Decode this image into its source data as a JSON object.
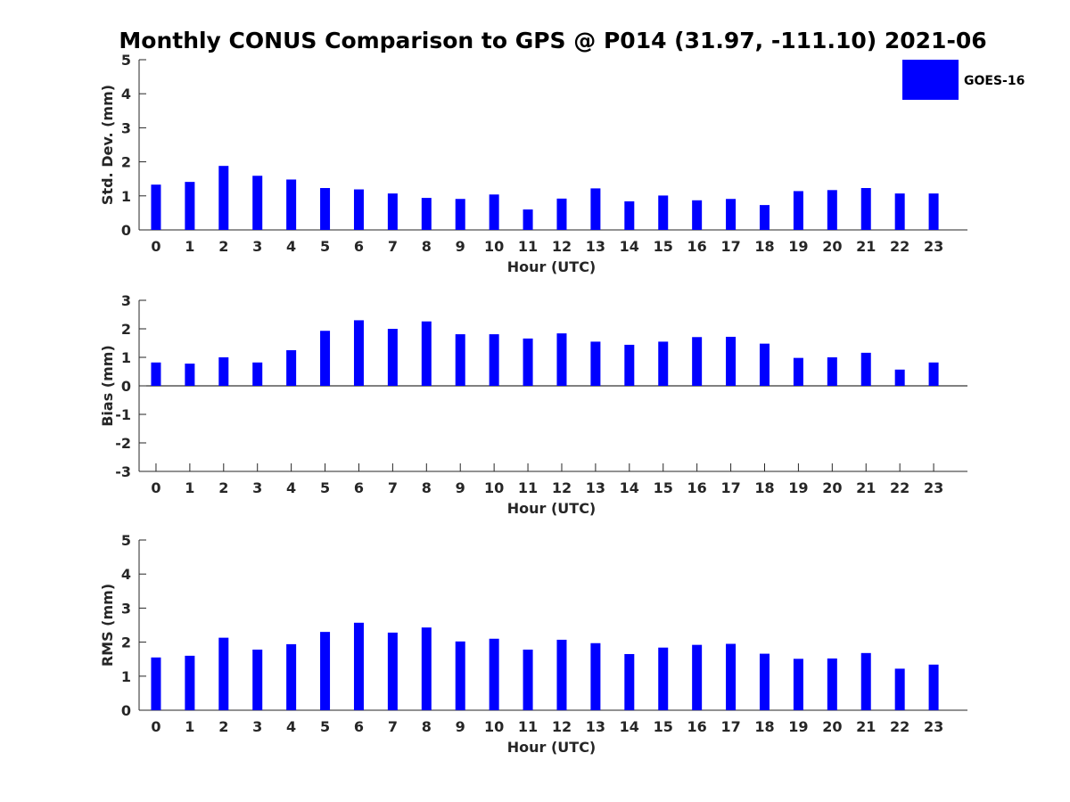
{
  "chart_data": {
    "title": "Monthly CONUS Comparison to GPS @ P014 (31.97, -111.10) 2021-06",
    "legend": {
      "label": "GOES-16",
      "color": "#0000ff",
      "position": "top-right"
    },
    "bar_color": "#0000ff",
    "panels": [
      {
        "type": "bar",
        "ylabel": "Std. Dev. (mm)",
        "xlabel": "Hour (UTC)",
        "ylim": [
          0,
          5
        ],
        "yticks": [
          "0",
          "1",
          "2",
          "3",
          "4",
          "5"
        ],
        "categories": [
          "0",
          "1",
          "2",
          "3",
          "4",
          "5",
          "6",
          "7",
          "8",
          "9",
          "10",
          "11",
          "12",
          "13",
          "14",
          "15",
          "16",
          "17",
          "18",
          "19",
          "20",
          "21",
          "22",
          "23"
        ],
        "series": [
          {
            "name": "GOES-16",
            "values": [
              1.33,
              1.41,
              1.88,
              1.59,
              1.48,
              1.23,
              1.19,
              1.07,
              0.94,
              0.91,
              1.04,
              0.6,
              0.92,
              1.22,
              0.84,
              1.01,
              0.87,
              0.91,
              0.73,
              1.14,
              1.17,
              1.23,
              1.07,
              1.07
            ]
          }
        ]
      },
      {
        "type": "bar",
        "ylabel": "Bias (mm)",
        "xlabel": "Hour (UTC)",
        "ylim": [
          -3,
          3
        ],
        "yticks": [
          "-3",
          "-2",
          "-1",
          "0",
          "1",
          "2",
          "3"
        ],
        "categories": [
          "0",
          "1",
          "2",
          "3",
          "4",
          "5",
          "6",
          "7",
          "8",
          "9",
          "10",
          "11",
          "12",
          "13",
          "14",
          "15",
          "16",
          "17",
          "18",
          "19",
          "20",
          "21",
          "22",
          "23"
        ],
        "series": [
          {
            "name": "GOES-16",
            "values": [
              0.82,
              0.78,
              1.0,
              0.82,
              1.25,
              1.93,
              2.3,
              2.0,
              2.26,
              1.81,
              1.81,
              1.66,
              1.84,
              1.55,
              1.44,
              1.55,
              1.71,
              1.72,
              1.48,
              0.98,
              1.0,
              1.16,
              0.57,
              0.82
            ]
          }
        ]
      },
      {
        "type": "bar",
        "ylabel": "RMS (mm)",
        "xlabel": "Hour (UTC)",
        "ylim": [
          0,
          5
        ],
        "yticks": [
          "0",
          "1",
          "2",
          "3",
          "4",
          "5"
        ],
        "categories": [
          "0",
          "1",
          "2",
          "3",
          "4",
          "5",
          "6",
          "7",
          "8",
          "9",
          "10",
          "11",
          "12",
          "13",
          "14",
          "15",
          "16",
          "17",
          "18",
          "19",
          "20",
          "21",
          "22",
          "23"
        ],
        "series": [
          {
            "name": "GOES-16",
            "values": [
              1.55,
              1.6,
              2.13,
              1.78,
              1.94,
              2.3,
              2.57,
              2.28,
              2.43,
              2.02,
              2.1,
              1.78,
              2.07,
              1.97,
              1.65,
              1.84,
              1.92,
              1.95,
              1.66,
              1.51,
              1.52,
              1.68,
              1.22,
              1.34
            ]
          }
        ]
      }
    ]
  }
}
